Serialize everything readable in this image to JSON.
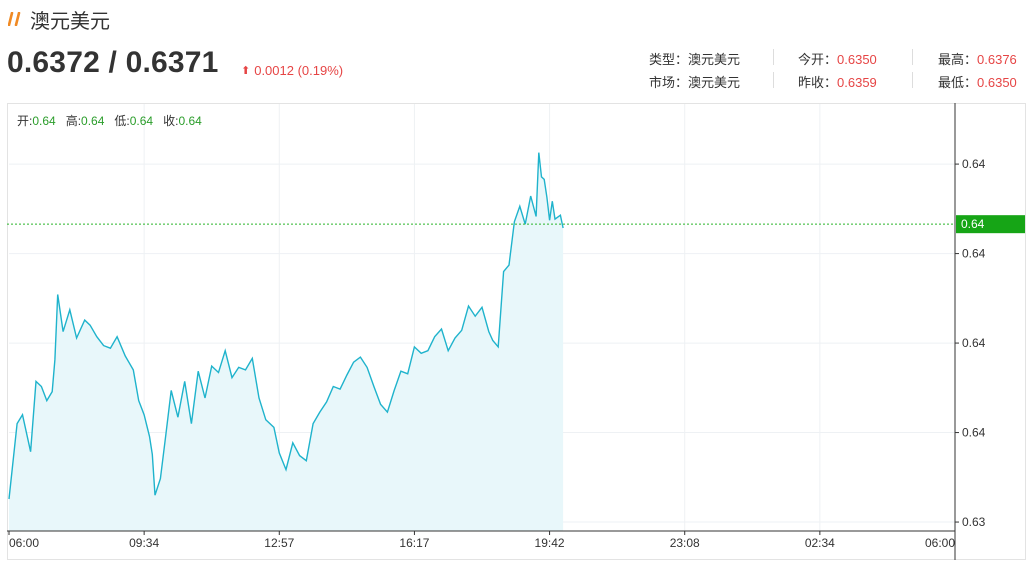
{
  "header": {
    "title": "澳元美元",
    "icon": "double-slash-icon",
    "accent_color": "#f08a24"
  },
  "quote": {
    "price": "0.6372 / 0.6371",
    "change": "0.0012 (0.19%)",
    "change_color": "#e64545",
    "direction": "up"
  },
  "info": {
    "type_label": "类型：",
    "type_value": "澳元美元",
    "market_label": "市场：",
    "market_value": "澳元美元",
    "open_label": "今开：",
    "open_value": "0.6350",
    "prev_close_label": "昨收：",
    "prev_close_value": "0.6359",
    "high_label": "最高：",
    "high_value": "0.6376",
    "low_label": "最低：",
    "low_value": "0.6350"
  },
  "ohlc": {
    "open_label": "开:",
    "open": "0.64",
    "high_label": "高:",
    "high": "0.64",
    "low_label": "低:",
    "low": "0.64",
    "close_label": "收:",
    "close": "0.64"
  },
  "chart_data": {
    "type": "area",
    "line_color": "#1fb3cc",
    "fill_color": "#e8f7fa",
    "current_line_color": "#2ab52a",
    "x_tick_labels": [
      "06:00",
      "09:34",
      "12:57",
      "16:17",
      "19:42",
      "23:08",
      "02:34",
      "06:00"
    ],
    "y_tick_labels": [
      "0.64",
      "0.64",
      "0.64",
      "0.64",
      "0.63"
    ],
    "y_tick_values": [
      0.6376,
      0.6369,
      0.6362,
      0.6355,
      0.6348
    ],
    "ylim": [
      0.63473,
      0.63807
    ],
    "current_label": "0.64",
    "current_value": 0.63713,
    "x": [
      0,
      6,
      10,
      16,
      20,
      24,
      28,
      32,
      34,
      36,
      40,
      45,
      50,
      56,
      60,
      65,
      70,
      75,
      80,
      86,
      92,
      96,
      100,
      104,
      106,
      108,
      112,
      116,
      120,
      125,
      130,
      135,
      140,
      145,
      150,
      155,
      160,
      165,
      170,
      175,
      180,
      185,
      190,
      196,
      200,
      205,
      210,
      215,
      220,
      225,
      230,
      235,
      240,
      245,
      250,
      255,
      260,
      265,
      270,
      275,
      280,
      285,
      290,
      295,
      300,
      305,
      310,
      315,
      320,
      325,
      330,
      335,
      340,
      345,
      350,
      355,
      358,
      362,
      366,
      370,
      374,
      378,
      382,
      386,
      390,
      392,
      394,
      396,
      398,
      400,
      402,
      404,
      408,
      410
    ],
    "y": [
      0.63498,
      0.63557,
      0.63564,
      0.63535,
      0.6359,
      0.63586,
      0.63575,
      0.63582,
      0.63607,
      0.63658,
      0.63629,
      0.63646,
      0.63624,
      0.63638,
      0.63634,
      0.63625,
      0.63618,
      0.63616,
      0.63625,
      0.6361,
      0.63599,
      0.63575,
      0.63564,
      0.63547,
      0.63533,
      0.63501,
      0.63514,
      0.63548,
      0.63583,
      0.63562,
      0.6359,
      0.63557,
      0.63598,
      0.63577,
      0.63602,
      0.63597,
      0.63614,
      0.63593,
      0.63601,
      0.63599,
      0.63608,
      0.63577,
      0.6356,
      0.63554,
      0.63534,
      0.63521,
      0.63542,
      0.63532,
      0.63528,
      0.63557,
      0.63566,
      0.63574,
      0.63586,
      0.63584,
      0.63595,
      0.63605,
      0.63609,
      0.63601,
      0.63586,
      0.63572,
      0.63566,
      0.63583,
      0.63598,
      0.63596,
      0.63617,
      0.63612,
      0.63614,
      0.63625,
      0.63631,
      0.63614,
      0.63624,
      0.6363,
      0.63649,
      0.63641,
      0.63648,
      0.63629,
      0.63622,
      0.63617,
      0.63676,
      0.63681,
      0.63715,
      0.63727,
      0.63713,
      0.63735,
      0.63719,
      0.63769,
      0.6375,
      0.63748,
      0.63734,
      0.63716,
      0.63731,
      0.63717,
      0.6372,
      0.6371
    ]
  }
}
